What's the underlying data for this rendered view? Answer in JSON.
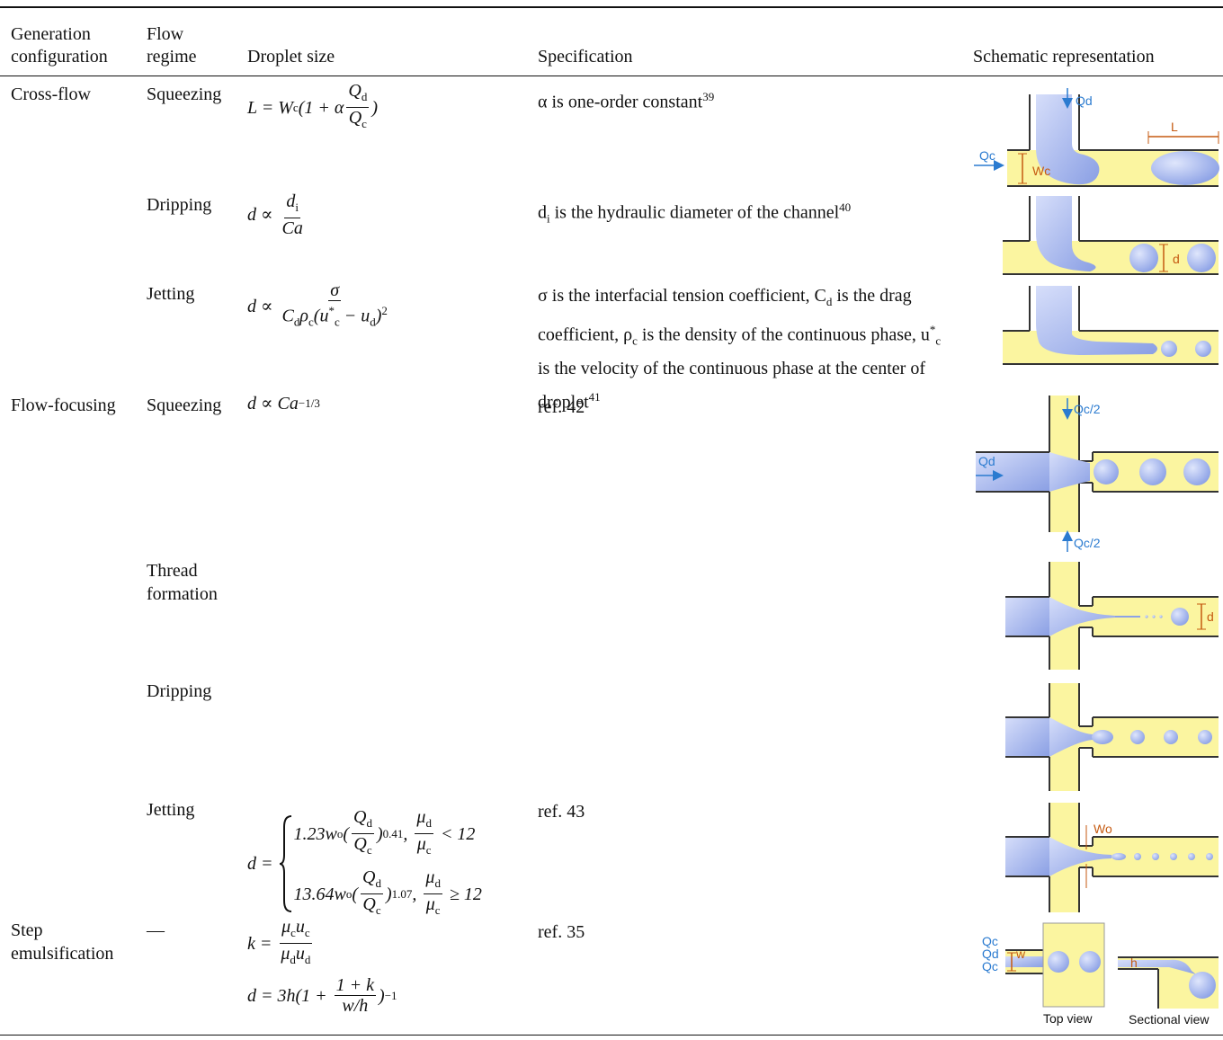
{
  "table": {
    "headers": [
      "Generation configuration",
      "Flow regime",
      "Droplet size",
      "Specification",
      "Schematic representation"
    ],
    "rows": [
      {
        "configuration": "Cross-flow",
        "regime": "Squeezing",
        "size": [
          [
            "L = W",
            {
              "sub": "c"
            },
            "(1 + α",
            {
              "num": [
                "Q",
                {
                  "sub": "d"
                }
              ],
              "den": [
                "Q",
                {
                  "sub": "c"
                }
              ]
            },
            ")"
          ]
        ],
        "specification": [
          "α is one-order constant",
          {
            "sup": "39"
          }
        ]
      },
      {
        "regime": "Dripping",
        "size": [
          [
            "d ∝ ",
            {
              "num": [
                "d",
                {
                  "sub": "i"
                }
              ],
              "den": [
                "Ca"
              ]
            }
          ]
        ],
        "specification": [
          "d",
          {
            "sub": "i"
          },
          " is the hydraulic diameter of the channel",
          {
            "sup": "40"
          }
        ]
      },
      {
        "regime": "Jetting",
        "size": [
          [
            "d ∝ ",
            {
              "num": [
                "σ"
              ],
              "den": [
                "C",
                {
                  "sub": "d"
                },
                "ρ",
                {
                  "sub": "c"
                },
                "(u",
                {
                  "sup": "*"
                },
                {
                  "sub": "c"
                },
                " − u",
                {
                  "sub": "d"
                },
                ")",
                {
                  "sup": "2"
                }
              ]
            }
          ]
        ],
        "specification": [
          "σ is the interfacial tension coefficient, C",
          {
            "sub": "d"
          },
          " is the drag coefficient, ρ",
          {
            "sub": "c"
          },
          " is the density of the continuous phase, u",
          {
            "sup": "*"
          },
          {
            "sub": "c"
          },
          " is the velocity of the continuous phase at the center of droplet",
          {
            "sup": "41"
          }
        ]
      },
      {
        "configuration": "Flow-focusing",
        "regime": "Squeezing",
        "size": [
          [
            "d ∝ Ca",
            {
              "sup": "−1/3"
            }
          ]
        ],
        "specification": [
          "ref. 42"
        ]
      },
      {
        "regime": "Thread formation"
      },
      {
        "regime": "Dripping"
      },
      {
        "regime": "Jetting",
        "size": [
          [
            "d = ",
            {
              "cases": [
                [
                  "1.23w",
                  {
                    "sub": "o"
                  },
                  "(",
                  {
                    "num": [
                      "Q",
                      {
                        "sub": "d"
                      }
                    ],
                    "den": [
                      "Q",
                      {
                        "sub": "c"
                      }
                    ]
                  },
                  ")",
                  {
                    "sup": "0.41"
                  },
                  ", ",
                  {
                    "num": [
                      "μ",
                      {
                        "sub": "d"
                      }
                    ],
                    "den": [
                      "μ",
                      {
                        "sub": "c"
                      }
                    ]
                  },
                  " < 12"
                ],
                [
                  "13.64w",
                  {
                    "sub": "o"
                  },
                  "(",
                  {
                    "num": [
                      "Q",
                      {
                        "sub": "d"
                      }
                    ],
                    "den": [
                      "Q",
                      {
                        "sub": "c"
                      }
                    ]
                  },
                  ")",
                  {
                    "sup": "1.07"
                  },
                  ", ",
                  {
                    "num": [
                      "μ",
                      {
                        "sub": "d"
                      }
                    ],
                    "den": [
                      "μ",
                      {
                        "sub": "c"
                      }
                    ]
                  },
                  " ≥ 12"
                ]
              ]
            }
          ]
        ],
        "specification": [
          "ref. 43"
        ]
      },
      {
        "configuration": "Step emulsification",
        "regime": "—",
        "size": [
          [
            "k = ",
            {
              "num": [
                "μ",
                {
                  "sub": "c"
                },
                "u",
                {
                  "sub": "c"
                }
              ],
              "den": [
                "μ",
                {
                  "sub": "d"
                },
                "u",
                {
                  "sub": "d"
                }
              ]
            }
          ],
          [
            "d = 3h(1 + ",
            {
              "num": [
                "1 + k"
              ],
              "den": [
                "w/h"
              ]
            },
            ")",
            {
              "sup": "−1"
            }
          ]
        ],
        "specification": [
          "ref. 35"
        ]
      }
    ]
  },
  "schematics": {
    "cross_flow_squeezing": [
      "Qd",
      "Qc",
      "Wc",
      "L"
    ],
    "cross_flow_dripping": [
      "d"
    ],
    "flow_focusing_squeezing": [
      "Qc/2",
      "Qd",
      "Qc/2"
    ],
    "flow_focusing_thread": [
      "d"
    ],
    "flow_focusing_jetting": [
      "Wo"
    ],
    "step_emulsification": [
      "Qc",
      "Qd",
      "Qc",
      "w",
      "h",
      "Top view",
      "Sectional view"
    ]
  }
}
